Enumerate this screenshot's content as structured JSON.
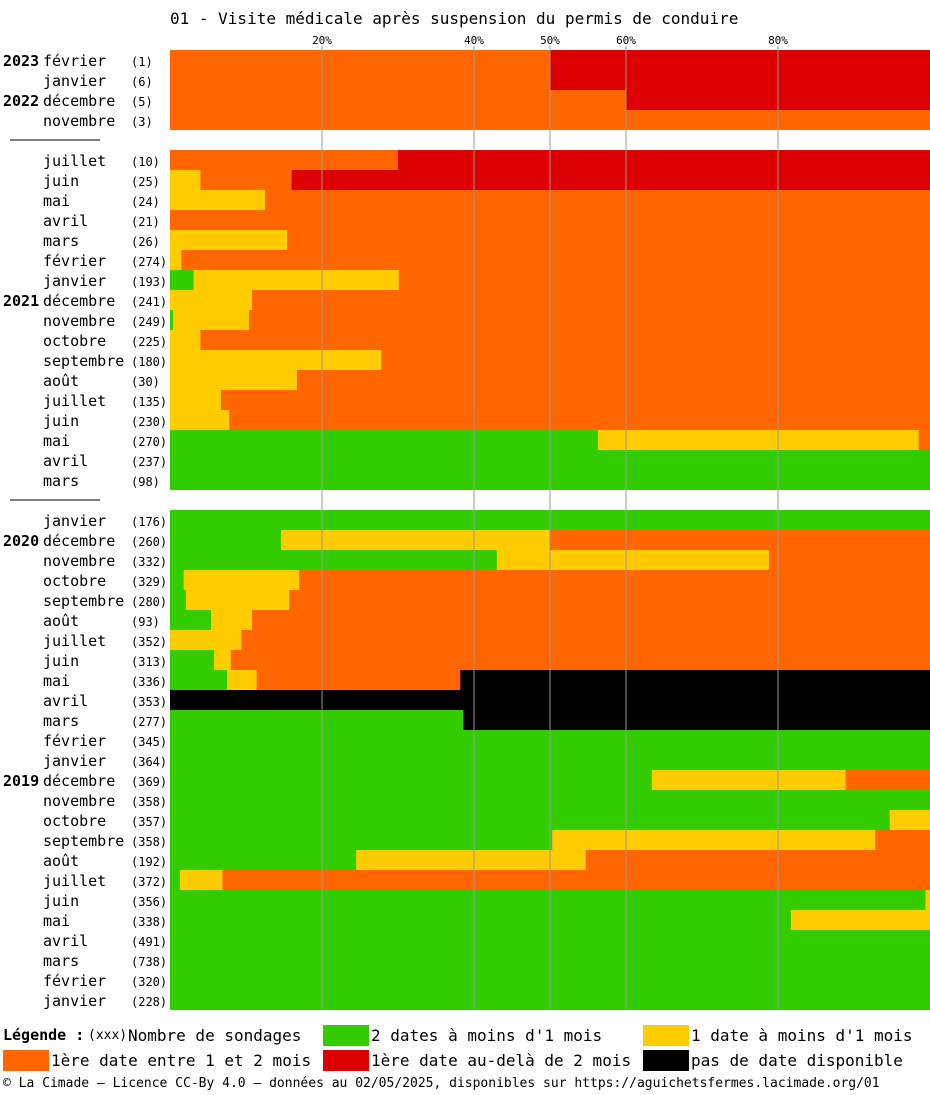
{
  "title": "01 - Visite médicale après suspension du permis de conduire",
  "colors": {
    "green": "#33cc00",
    "yellow": "#ffcc00",
    "orange": "#ff6600",
    "red": "#dd0000",
    "black": "#000000",
    "grid": "#999999"
  },
  "chart_data": {
    "type": "bar",
    "orientation": "horizontal-stacked-100",
    "x_ticks": [
      {
        "value": 20,
        "label": "20%"
      },
      {
        "value": 40,
        "label": "40%"
      },
      {
        "value": 50,
        "label": "50%"
      },
      {
        "value": 60,
        "label": "60%"
      },
      {
        "value": 80,
        "label": "80%"
      }
    ],
    "xlim": [
      0,
      100
    ],
    "series": [
      {
        "name": "2 dates à moins d'1 mois",
        "color": "#33cc00"
      },
      {
        "name": "1 date à moins d'1 mois",
        "color": "#ffcc00"
      },
      {
        "name": "1ère date entre 1 et 2 mois",
        "color": "#ff6600"
      },
      {
        "name": "1ère date au-delà de 2 mois",
        "color": "#dd0000"
      },
      {
        "name": "pas de date disponible",
        "color": "#000000"
      }
    ],
    "groups": [
      {
        "rows": [
          {
            "year": "2023",
            "month": "février",
            "n": "(1)",
            "values": [
              0,
              0,
              50,
              50,
              0
            ]
          },
          {
            "year": "",
            "month": "janvier",
            "n": "(6)",
            "values": [
              0,
              0,
              50,
              50,
              0
            ]
          },
          {
            "year": "2022",
            "month": "décembre",
            "n": "(5)",
            "values": [
              0,
              0,
              60,
              40,
              0
            ]
          },
          {
            "year": "",
            "month": "novembre",
            "n": "(3)",
            "values": [
              0,
              0,
              100,
              0,
              0
            ]
          }
        ]
      },
      {
        "rows": [
          {
            "year": "",
            "month": "juillet",
            "n": "(10)",
            "values": [
              0,
              0,
              30,
              70,
              0
            ]
          },
          {
            "year": "",
            "month": "juin",
            "n": "(25)",
            "values": [
              0,
              4,
              12,
              84,
              0
            ]
          },
          {
            "year": "",
            "month": "mai",
            "n": "(24)",
            "values": [
              0,
              12.5,
              87.5,
              0,
              0
            ]
          },
          {
            "year": "",
            "month": "avril",
            "n": "(21)",
            "values": [
              0,
              0,
              100,
              0,
              0
            ]
          },
          {
            "year": "",
            "month": "mars",
            "n": "(26)",
            "values": [
              0,
              15.4,
              84.6,
              0,
              0
            ]
          },
          {
            "year": "",
            "month": "février",
            "n": "(274)",
            "values": [
              0,
              1.5,
              98.5,
              0,
              0
            ]
          },
          {
            "year": "",
            "month": "janvier",
            "n": "(193)",
            "values": [
              3.1,
              27,
              69.9,
              0,
              0
            ]
          },
          {
            "year": "2021",
            "month": "décembre",
            "n": "(241)",
            "values": [
              0,
              10.8,
              89.2,
              0,
              0
            ]
          },
          {
            "year": "",
            "month": "novembre",
            "n": "(249)",
            "values": [
              0.4,
              10,
              89.6,
              0,
              0
            ]
          },
          {
            "year": "",
            "month": "octobre",
            "n": "(225)",
            "values": [
              0,
              4,
              96,
              0,
              0
            ]
          },
          {
            "year": "",
            "month": "septembre",
            "n": "(180)",
            "values": [
              0,
              27.8,
              72.2,
              0,
              0
            ]
          },
          {
            "year": "",
            "month": "août",
            "n": "(30)",
            "values": [
              0,
              16.7,
              83.3,
              0,
              0
            ]
          },
          {
            "year": "",
            "month": "juillet",
            "n": "(135)",
            "values": [
              0,
              6.7,
              93.3,
              0,
              0
            ]
          },
          {
            "year": "",
            "month": "juin",
            "n": "(230)",
            "values": [
              0,
              7.8,
              92.2,
              0,
              0
            ]
          },
          {
            "year": "",
            "month": "mai",
            "n": "(270)",
            "values": [
              56.3,
              42.2,
              1.5,
              0,
              0
            ]
          },
          {
            "year": "",
            "month": "avril",
            "n": "(237)",
            "values": [
              100,
              0,
              0,
              0,
              0
            ]
          },
          {
            "year": "",
            "month": "mars",
            "n": "(98)",
            "values": [
              100,
              0,
              0,
              0,
              0
            ]
          }
        ]
      },
      {
        "rows": [
          {
            "year": "",
            "month": "janvier",
            "n": "(176)",
            "values": [
              100,
              0,
              0,
              0,
              0
            ]
          },
          {
            "year": "2020",
            "month": "décembre",
            "n": "(260)",
            "values": [
              14.6,
              35.4,
              50,
              0,
              0
            ]
          },
          {
            "year": "",
            "month": "novembre",
            "n": "(332)",
            "values": [
              43,
              35.8,
              21.2,
              0,
              0
            ]
          },
          {
            "year": "",
            "month": "octobre",
            "n": "(329)",
            "values": [
              1.8,
              15.2,
              83,
              0,
              0
            ]
          },
          {
            "year": "",
            "month": "septembre",
            "n": "(280)",
            "values": [
              2.1,
              13.6,
              84.3,
              0,
              0
            ]
          },
          {
            "year": "",
            "month": "août",
            "n": "(93)",
            "values": [
              5.4,
              5.4,
              89.2,
              0,
              0
            ]
          },
          {
            "year": "",
            "month": "juillet",
            "n": "(352)",
            "values": [
              0,
              9.4,
              90.6,
              0,
              0
            ]
          },
          {
            "year": "",
            "month": "juin",
            "n": "(313)",
            "values": [
              5.8,
              2.2,
              92,
              0,
              0
            ]
          },
          {
            "year": "",
            "month": "mai",
            "n": "(336)",
            "values": [
              7.5,
              3.9,
              26.8,
              0,
              61.8
            ]
          },
          {
            "year": "",
            "month": "avril",
            "n": "(353)",
            "values": [
              0,
              0,
              0,
              0,
              100
            ]
          },
          {
            "year": "",
            "month": "mars",
            "n": "(277)",
            "values": [
              38.6,
              0,
              0,
              0,
              61.4
            ]
          },
          {
            "year": "",
            "month": "février",
            "n": "(345)",
            "values": [
              100,
              0,
              0,
              0,
              0
            ]
          },
          {
            "year": "",
            "month": "janvier",
            "n": "(364)",
            "values": [
              100,
              0,
              0,
              0,
              0
            ]
          },
          {
            "year": "2019",
            "month": "décembre",
            "n": "(369)",
            "values": [
              63.4,
              25.5,
              11.1,
              0,
              0
            ]
          },
          {
            "year": "",
            "month": "novembre",
            "n": "(358)",
            "values": [
              100,
              0,
              0,
              0,
              0
            ]
          },
          {
            "year": "",
            "month": "octobre",
            "n": "(357)",
            "values": [
              94.7,
              5.3,
              0,
              0,
              0
            ]
          },
          {
            "year": "",
            "month": "septembre",
            "n": "(358)",
            "values": [
              50.3,
              42.5,
              7.2,
              0,
              0
            ]
          },
          {
            "year": "",
            "month": "août",
            "n": "(192)",
            "values": [
              24.5,
              30.2,
              45.3,
              0,
              0
            ]
          },
          {
            "year": "",
            "month": "juillet",
            "n": "(372)",
            "values": [
              1.3,
              5.6,
              93.1,
              0,
              0
            ]
          },
          {
            "year": "",
            "month": "juin",
            "n": "(356)",
            "values": [
              99.4,
              0.6,
              0,
              0,
              0
            ]
          },
          {
            "year": "",
            "month": "mai",
            "n": "(338)",
            "values": [
              81.7,
              18.3,
              0,
              0,
              0
            ]
          },
          {
            "year": "",
            "month": "avril",
            "n": "(491)",
            "values": [
              100,
              0,
              0,
              0,
              0
            ]
          },
          {
            "year": "",
            "month": "mars",
            "n": "(738)",
            "values": [
              100,
              0,
              0,
              0,
              0
            ]
          },
          {
            "year": "",
            "month": "février",
            "n": "(320)",
            "values": [
              100,
              0,
              0,
              0,
              0
            ]
          },
          {
            "year": "",
            "month": "janvier",
            "n": "(228)",
            "values": [
              100,
              0,
              0,
              0,
              0
            ]
          }
        ]
      }
    ]
  },
  "legend": {
    "title": "Légende :",
    "count_marker": "(xxx)",
    "count_text": "Nombre de sondages",
    "items": [
      {
        "label": "2 dates à moins d'1 mois",
        "color": "#33cc00"
      },
      {
        "label": "1 date à moins d'1 mois",
        "color": "#ffcc00"
      },
      {
        "label": "1ère date entre 1 et 2 mois",
        "color": "#ff6600"
      },
      {
        "label": "1ère date au-delà de 2 mois",
        "color": "#dd0000"
      },
      {
        "label": "pas de date disponible",
        "color": "#000000"
      }
    ]
  },
  "footer": "© La Cimade – Licence CC-By 4.0 – données au 02/05/2025, disponibles sur https://aguichetsfermes.lacimade.org/01"
}
